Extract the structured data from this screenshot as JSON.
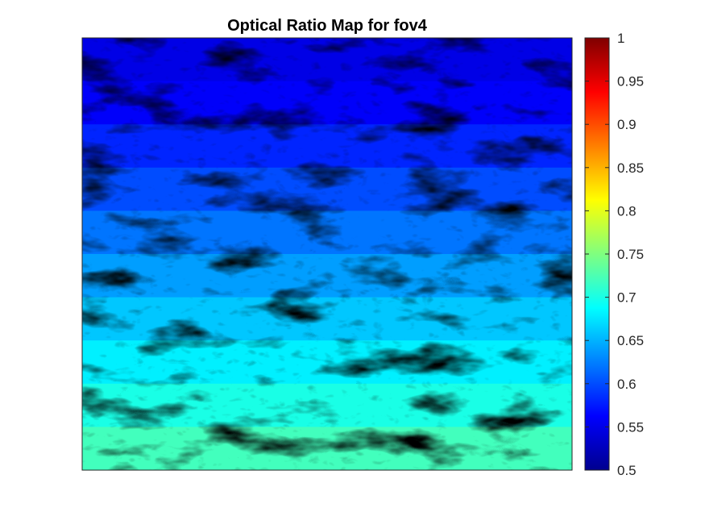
{
  "chart_data": {
    "type": "heatmap",
    "title": "Optical Ratio Map for fov4",
    "xlabel": "",
    "ylabel": "",
    "colormap": "jet",
    "colorbar": {
      "clim": [
        0.5,
        1
      ],
      "ticks": [
        1,
        0.95,
        0.9,
        0.85,
        0.8,
        0.75,
        0.7,
        0.65,
        0.6,
        0.55,
        0.5
      ],
      "tick_labels": [
        "1",
        "0.95",
        "0.9",
        "0.85",
        "0.8",
        "0.75",
        "0.7",
        "0.65",
        "0.6",
        "0.55",
        "0.5"
      ]
    },
    "approx_ratio_by_row_band_top_to_bottom": [
      0.55,
      0.56,
      0.58,
      0.6,
      0.62,
      0.64,
      0.66,
      0.68,
      0.7,
      0.72
    ],
    "axis_ticks_visible": false,
    "grid": false,
    "colors": {
      "low": "#00008f",
      "mid": "#00ffff",
      "high": "#800000",
      "background_dark": "#000000"
    }
  }
}
